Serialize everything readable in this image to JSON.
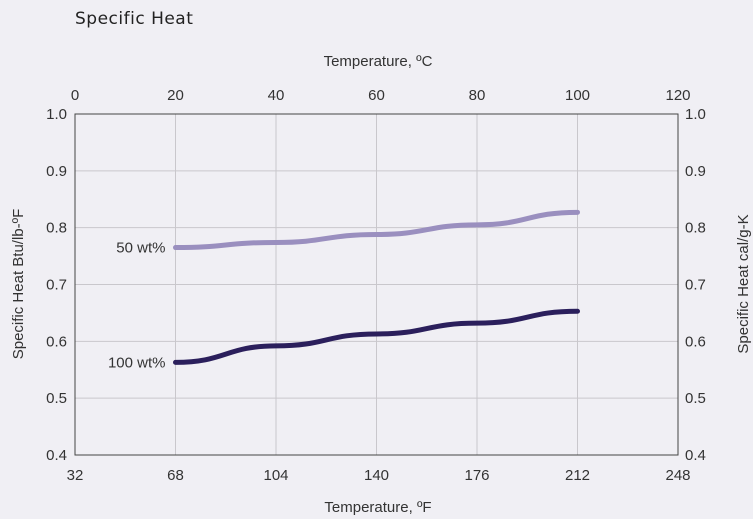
{
  "page": {
    "title": "Specific Heat"
  },
  "colors": {
    "background": "#f0eff4",
    "grid": "#c9c7cc",
    "axis": "#444444",
    "series_50": "#9a8fbf",
    "series_100": "#2b1f5c"
  },
  "chart_data": {
    "type": "line",
    "title": "Specific Heat",
    "xlabel_top": "Temperature, ºC",
    "xlabel_bottom": "Temperature, ºF",
    "ylabel_left": "Specific Heat Btu/lb-ºF",
    "ylabel_right": "Specific Heat cal/g-K",
    "x_top_ticks": [
      "0",
      "20",
      "40",
      "60",
      "80",
      "100",
      "120"
    ],
    "x_bottom_ticks": [
      "32",
      "68",
      "104",
      "140",
      "176",
      "212",
      "248"
    ],
    "y_ticks": [
      "0.4",
      "0.5",
      "0.6",
      "0.7",
      "0.8",
      "0.9",
      "1.0"
    ],
    "y_right_ticks": [
      "0.4",
      "0.5",
      "0.6",
      "0.7",
      "0.8",
      "0.9",
      "1.0"
    ],
    "xlim_c": [
      0,
      120
    ],
    "ylim": [
      0.4,
      1.0
    ],
    "grid": true,
    "series": [
      {
        "name": "50 wt%",
        "x_c": [
          20,
          40,
          60,
          80,
          100
        ],
        "values": [
          0.765,
          0.774,
          0.788,
          0.805,
          0.827
        ]
      },
      {
        "name": "100 wt%",
        "x_c": [
          20,
          40,
          60,
          80,
          100
        ],
        "values": [
          0.563,
          0.592,
          0.613,
          0.632,
          0.653
        ]
      }
    ]
  }
}
